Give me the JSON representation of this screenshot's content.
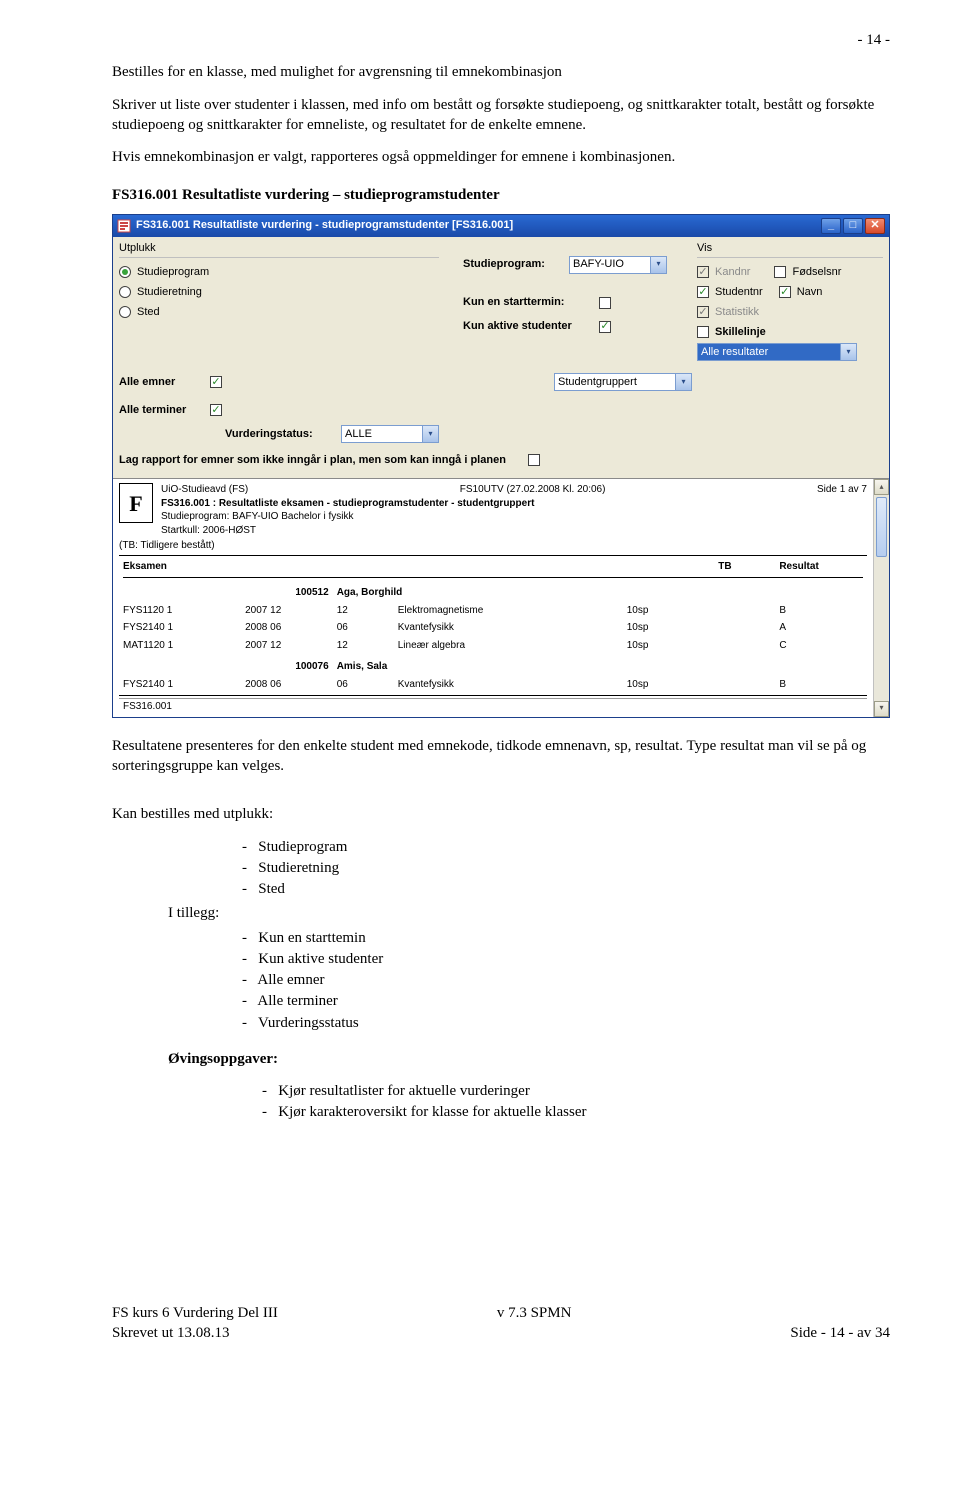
{
  "page": {
    "number_text": "- 14 -",
    "p1": "Bestilles for en klasse, med mulighet for avgrensning til emnekombinasjon",
    "p2": "Skriver ut liste over studenter i klassen, med info om bestått og forsøkte studiepoeng, og snittkarakter totalt, bestått og forsøkte studiepoeng og snittkarakter for emneliste, og resultatet for de enkelte emnene.",
    "p3": "Hvis emnekombinasjon er valgt, rapporteres også oppmeldinger for emnene i kombinasjonen.",
    "heading": "FS316.001 Resultatliste vurdering – studieprogramstudenter",
    "p4": "Resultatene presenteres for den enkelte student med emnekode, tidkode emnenavn, sp, resultat. Type resultat man vil se på og sorteringsgruppe kan velges.",
    "list1_heading": "Kan bestilles med utplukk:",
    "list1": [
      "Studieprogram",
      "Studieretning",
      "Sted"
    ],
    "list2_heading": "I tillegg:",
    "list2": [
      "Kun en starttemin",
      "Kun aktive studenter",
      "Alle emner",
      "Alle terminer",
      "Vurderingsstatus"
    ],
    "ov_heading": "Øvingsoppgaver:",
    "ov_list": [
      "Kjør resultatlister for aktuelle vurderinger",
      "Kjør karakteroversikt for klasse for aktuelle klasser"
    ]
  },
  "window": {
    "title": "FS316.001 Resultatliste vurdering - studieprogramstudenter [FS316.001]",
    "utplukk_label": "Utplukk",
    "radios": [
      "Studieprogram",
      "Studieretning",
      "Sted"
    ],
    "radio_selected": 0,
    "studieprogram_label": "Studieprogram:",
    "studieprogram_value": "BAFY-UIO",
    "kun_start_label": "Kun en starttermin:",
    "kun_start_checked": false,
    "kun_aktive_label": "Kun aktive studenter",
    "kun_aktive_checked": true,
    "vis_label": "Vis",
    "cb_kandnr": "Kandnr",
    "cb_fodselsnr": "Fødselsnr",
    "cb_studentnr": "Studentnr",
    "cb_navn": "Navn",
    "cb_statistikk": "Statistikk",
    "cb_skillelinje": "Skillelinje",
    "result_combo": "Alle resultater",
    "alle_emner_label": "Alle emner",
    "alle_emner_checked": true,
    "studentgruppert_label": "Studentgruppert",
    "alle_terminer_label": "Alle terminer",
    "alle_terminer_checked": true,
    "vurderingstatus_label": "Vurderingstatus:",
    "vurderingstatus_value": "ALLE",
    "lag_rapport_label": "Lag rapport for emner som ikke inngår i plan, men som kan inngå i planen",
    "lag_rapport_checked": false
  },
  "report": {
    "top_left": "UiO-Studieavd (FS)",
    "top_center": "FS10UTV   (27.02.2008 Kl. 20:06)",
    "top_right": "Side 1 av 7",
    "title": "FS316.001 : Resultatliste eksamen - studieprogramstudenter - studentgruppert",
    "line_sp": "Studieprogram: BAFY-UIO Bachelor i fysikk",
    "line_sk": "Startkull:        2006-HØST",
    "tb_note": "(TB: Tidligere bestått)",
    "col_eksamen": "Eksamen",
    "col_tb": "TB",
    "col_resultat": "Resultat",
    "students": [
      {
        "id": "100512",
        "name": "Aga, Borghild",
        "rows": [
          {
            "code": "FYS1120 1",
            "yr": "2007 12",
            "t": "12",
            "emne": "Elektromagnetisme",
            "sp": "10sp",
            "tb": "",
            "res": "B"
          },
          {
            "code": "FYS2140 1",
            "yr": "2008 06",
            "t": "06",
            "emne": "Kvantefysikk",
            "sp": "10sp",
            "tb": "",
            "res": "A"
          },
          {
            "code": "MAT1120 1",
            "yr": "2007 12",
            "t": "12",
            "emne": "Lineær algebra",
            "sp": "10sp",
            "tb": "",
            "res": "C"
          }
        ]
      },
      {
        "id": "100076",
        "name": "Amis, Sala",
        "rows": [
          {
            "code": "FYS2140 1",
            "yr": "2008 06",
            "t": "06",
            "emne": "Kvantefysikk",
            "sp": "10sp",
            "tb": "",
            "res": "B"
          }
        ]
      }
    ],
    "status": "FS316.001"
  },
  "footer": {
    "left1": "FS kurs 6 Vurdering Del III",
    "left2": "Skrevet ut 13.08.13",
    "center": "v 7.3 SPMN",
    "right": "Side - 14 - av 34"
  },
  "colors": {
    "titlebar_start": "#2a6ad3",
    "titlebar_end": "#1a4aa8",
    "panel_bg": "#ece9d8",
    "selection_bg": "#316ac5"
  }
}
